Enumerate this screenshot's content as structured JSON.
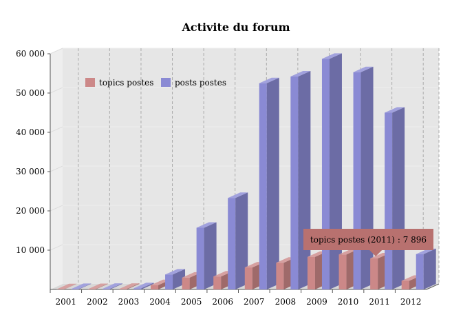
{
  "chart_data": {
    "type": "bar",
    "title": "Activite du forum",
    "xlabel": "",
    "ylabel": "",
    "categories": [
      "2001",
      "2002",
      "2003",
      "2004",
      "2005",
      "2006",
      "2007",
      "2008",
      "2009",
      "2010",
      "2011",
      "2012"
    ],
    "series": [
      {
        "name": "topics postes",
        "color": "#cc8888",
        "values": [
          50,
          80,
          150,
          1100,
          3000,
          3300,
          5600,
          6800,
          8300,
          8900,
          7896,
          2200
        ]
      },
      {
        "name": "posts postes",
        "color": "#8a8ad4",
        "values": [
          100,
          150,
          300,
          3800,
          15700,
          23300,
          52500,
          54200,
          58700,
          55300,
          45000,
          9000
        ]
      }
    ],
    "ylim": [
      0,
      60000
    ],
    "yticks": [
      "10 000",
      "20 000",
      "30 000",
      "40 000",
      "50 000",
      "60 000"
    ],
    "ytick_values": [
      10000,
      20000,
      30000,
      40000,
      50000,
      60000
    ],
    "grid": true,
    "legend_position": "top-left",
    "tooltip": {
      "text": "topics postes (2011) : 7 896",
      "series": 0,
      "category": "2011"
    }
  },
  "colors": {
    "plot_bg": "#e6e6e6",
    "grid": "#aaaaaa",
    "tooltip_bg": "#b8716f"
  }
}
